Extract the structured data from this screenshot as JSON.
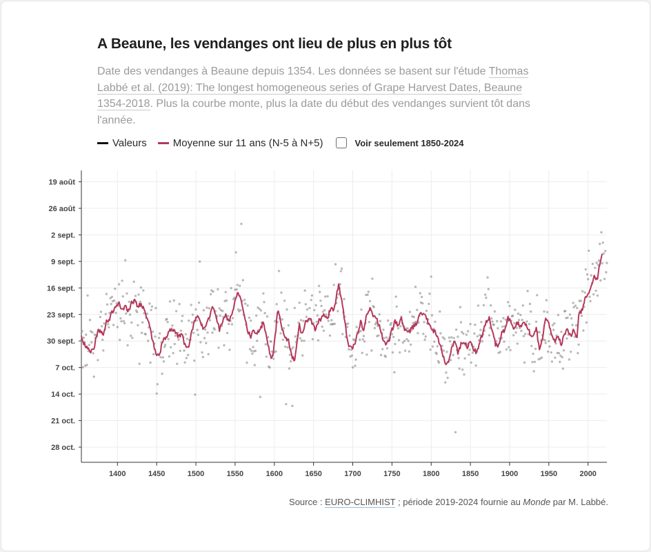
{
  "header": {
    "title": "A Beaune, les vendanges ont lieu de plus en plus tôt",
    "subtitle_part1": "Date des vendanges à Beaune depuis 1354. Les données se basent sur l'étude ",
    "subtitle_link": "Thomas Labbé et al. (2019): The longest homogeneous series of Grape Harvest Dates, Beaune 1354-2018",
    "subtitle_part2": ". Plus la courbe monte, plus la date du début des vendanges survient tôt dans l'année."
  },
  "legend": {
    "values_label": "Valeurs",
    "average_label": "Moyenne sur 11 ans (N-5 à N+5)",
    "toggle_label": "Voir seulement 1850-2024"
  },
  "colors": {
    "points": "#8a8a8a",
    "average_line": "#b5375a",
    "values_swatch": "#111111",
    "axis": "#333333",
    "grid": "#ececec"
  },
  "footer": {
    "source_prefix": "Source : ",
    "source_link": "EURO-CLIMHIST",
    "source_middle": " ; période 2019-2024 fournie au ",
    "source_italic": "Monde",
    "source_suffix": " par M. Labbé."
  },
  "chart_data": {
    "type": "scatter",
    "x_domain": [
      1354,
      2024
    ],
    "y_domain_day_of_year": [
      228,
      305
    ],
    "y_reversed_later_dates_lower": true,
    "x_ticks": [
      1400,
      1450,
      1500,
      1550,
      1600,
      1650,
      1700,
      1750,
      1800,
      1850,
      1900,
      1950,
      2000
    ],
    "y_ticks": [
      {
        "label": "19 août",
        "doy": 231
      },
      {
        "label": "26 août",
        "doy": 238
      },
      {
        "label": "2 sept.",
        "doy": 245
      },
      {
        "label": "9 sept.",
        "doy": 252
      },
      {
        "label": "16 sept.",
        "doy": 259
      },
      {
        "label": "23 sept.",
        "doy": 266
      },
      {
        "label": "30 sept.",
        "doy": 273
      },
      {
        "label": "7 oct.",
        "doy": 280
      },
      {
        "label": "14 oct.",
        "doy": 287
      },
      {
        "label": "21 oct.",
        "doy": 294
      },
      {
        "label": "28 oct.",
        "doy": 301
      }
    ],
    "average_anchors": [
      [
        1354,
        272
      ],
      [
        1358,
        274
      ],
      [
        1362,
        275
      ],
      [
        1366,
        276
      ],
      [
        1370,
        275
      ],
      [
        1374,
        271
      ],
      [
        1378,
        270
      ],
      [
        1382,
        272
      ],
      [
        1386,
        268
      ],
      [
        1390,
        267
      ],
      [
        1394,
        265
      ],
      [
        1398,
        264
      ],
      [
        1402,
        263
      ],
      [
        1406,
        265
      ],
      [
        1410,
        264
      ],
      [
        1414,
        265
      ],
      [
        1418,
        263
      ],
      [
        1422,
        262
      ],
      [
        1426,
        264
      ],
      [
        1430,
        263
      ],
      [
        1434,
        265
      ],
      [
        1438,
        267
      ],
      [
        1442,
        270
      ],
      [
        1446,
        274
      ],
      [
        1450,
        277
      ],
      [
        1454,
        276
      ],
      [
        1458,
        273
      ],
      [
        1462,
        272
      ],
      [
        1466,
        270
      ],
      [
        1470,
        270
      ],
      [
        1474,
        271
      ],
      [
        1478,
        272
      ],
      [
        1482,
        271
      ],
      [
        1486,
        274
      ],
      [
        1490,
        275
      ],
      [
        1494,
        271
      ],
      [
        1498,
        268
      ],
      [
        1502,
        266
      ],
      [
        1506,
        268
      ],
      [
        1510,
        270
      ],
      [
        1514,
        268
      ],
      [
        1518,
        266
      ],
      [
        1522,
        264
      ],
      [
        1526,
        267
      ],
      [
        1530,
        270
      ],
      [
        1534,
        268
      ],
      [
        1538,
        266
      ],
      [
        1542,
        268
      ],
      [
        1546,
        266
      ],
      [
        1550,
        262
      ],
      [
        1554,
        260
      ],
      [
        1558,
        262
      ],
      [
        1562,
        266
      ],
      [
        1566,
        270
      ],
      [
        1570,
        272
      ],
      [
        1574,
        270
      ],
      [
        1578,
        271
      ],
      [
        1582,
        270
      ],
      [
        1586,
        268
      ],
      [
        1590,
        272
      ],
      [
        1594,
        276
      ],
      [
        1596,
        278
      ],
      [
        1598,
        277
      ],
      [
        1602,
        270
      ],
      [
        1604,
        265
      ],
      [
        1606,
        266
      ],
      [
        1610,
        270
      ],
      [
        1614,
        272
      ],
      [
        1618,
        273
      ],
      [
        1622,
        277
      ],
      [
        1626,
        278
      ],
      [
        1630,
        272
      ],
      [
        1632,
        269
      ],
      [
        1634,
        271
      ],
      [
        1638,
        270
      ],
      [
        1640,
        268
      ],
      [
        1644,
        267
      ],
      [
        1648,
        268
      ],
      [
        1652,
        270
      ],
      [
        1656,
        268
      ],
      [
        1660,
        267
      ],
      [
        1664,
        266
      ],
      [
        1668,
        267
      ],
      [
        1672,
        264
      ],
      [
        1676,
        265
      ],
      [
        1680,
        260
      ],
      [
        1682,
        258
      ],
      [
        1686,
        262
      ],
      [
        1690,
        268
      ],
      [
        1694,
        274
      ],
      [
        1698,
        275
      ],
      [
        1702,
        274
      ],
      [
        1706,
        271
      ],
      [
        1710,
        268
      ],
      [
        1714,
        270
      ],
      [
        1718,
        266
      ],
      [
        1722,
        264
      ],
      [
        1726,
        266
      ],
      [
        1730,
        267
      ],
      [
        1734,
        269
      ],
      [
        1738,
        272
      ],
      [
        1742,
        274
      ],
      [
        1746,
        273
      ],
      [
        1750,
        270
      ],
      [
        1754,
        268
      ],
      [
        1758,
        269
      ],
      [
        1762,
        267
      ],
      [
        1766,
        270
      ],
      [
        1770,
        271
      ],
      [
        1774,
        270
      ],
      [
        1778,
        269
      ],
      [
        1782,
        268
      ],
      [
        1786,
        266
      ],
      [
        1790,
        266
      ],
      [
        1794,
        267
      ],
      [
        1798,
        269
      ],
      [
        1802,
        270
      ],
      [
        1806,
        271
      ],
      [
        1810,
        273
      ],
      [
        1814,
        276
      ],
      [
        1818,
        279
      ],
      [
        1822,
        278
      ],
      [
        1826,
        275
      ],
      [
        1830,
        273
      ],
      [
        1834,
        276
      ],
      [
        1838,
        274
      ],
      [
        1842,
        273
      ],
      [
        1846,
        275
      ],
      [
        1850,
        273
      ],
      [
        1854,
        275
      ],
      [
        1858,
        276
      ],
      [
        1862,
        273
      ],
      [
        1866,
        271
      ],
      [
        1870,
        268
      ],
      [
        1874,
        267
      ],
      [
        1878,
        270
      ],
      [
        1882,
        274
      ],
      [
        1886,
        274
      ],
      [
        1890,
        271
      ],
      [
        1894,
        270
      ],
      [
        1898,
        267
      ],
      [
        1902,
        268
      ],
      [
        1906,
        270
      ],
      [
        1910,
        268
      ],
      [
        1914,
        269
      ],
      [
        1918,
        268
      ],
      [
        1922,
        269
      ],
      [
        1926,
        271
      ],
      [
        1930,
        272
      ],
      [
        1934,
        270
      ],
      [
        1938,
        275
      ],
      [
        1942,
        272
      ],
      [
        1946,
        267
      ],
      [
        1950,
        268
      ],
      [
        1954,
        272
      ],
      [
        1958,
        273
      ],
      [
        1962,
        272
      ],
      [
        1966,
        274
      ],
      [
        1970,
        271
      ],
      [
        1974,
        270
      ],
      [
        1978,
        272
      ],
      [
        1982,
        270
      ],
      [
        1986,
        272
      ],
      [
        1988,
        266
      ],
      [
        1992,
        265
      ],
      [
        1996,
        262
      ],
      [
        2000,
        261
      ],
      [
        2004,
        258
      ],
      [
        2008,
        256
      ],
      [
        2012,
        257
      ],
      [
        2014,
        254
      ],
      [
        2016,
        252
      ],
      [
        2018,
        250
      ]
    ],
    "scatter_seed": 1354
  }
}
